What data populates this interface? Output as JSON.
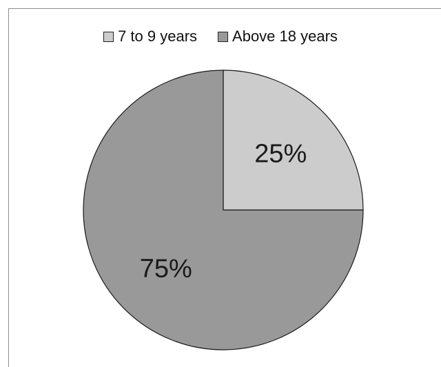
{
  "chart_data": {
    "type": "pie",
    "categories": [
      "7 to 9 years",
      "Above 18 years"
    ],
    "values": [
      25,
      75
    ],
    "data_labels": [
      "25%",
      "75%"
    ],
    "colors": [
      "#cccccc",
      "#999999"
    ],
    "title": "",
    "legend_position": "top"
  }
}
